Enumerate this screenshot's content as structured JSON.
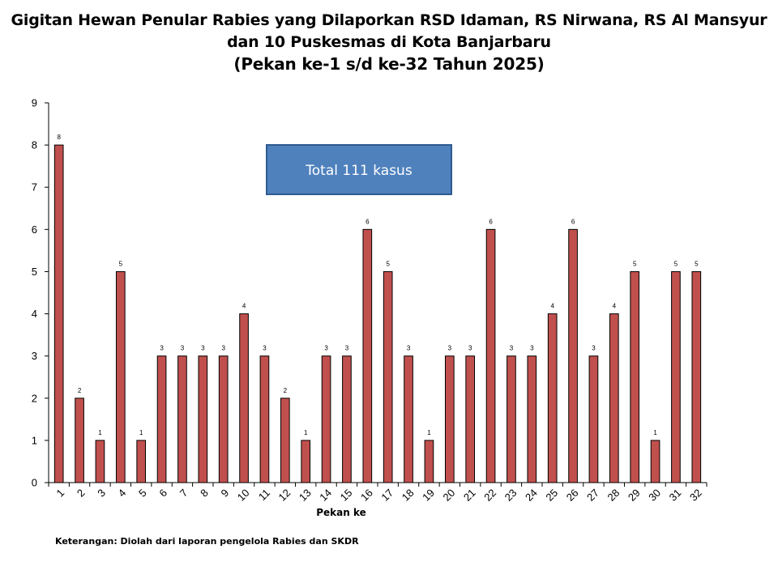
{
  "title_lines": [
    "Gigitan Hewan Penular Rabies yang Dilaporkan RSD Idaman, RS Nirwana, RS Al Mansyur",
    "dan 10 Puskesmas di Kota Banjarbaru",
    "(Pekan ke-1 s/d ke-32 Tahun 2025)"
  ],
  "total_box": {
    "label": "Total 111 kasus",
    "fill": "#4F81BD",
    "border": "#2E5B8F",
    "text_color": "#FFFFFF"
  },
  "footnote": "Keterangan: Diolah dari laporan pengelola Rabies dan SKDR",
  "colors": {
    "bar_fill": "#C0504D",
    "bar_stroke": "#000000",
    "axis": "#000000"
  },
  "chart_data": {
    "type": "bar",
    "title": "Gigitan Hewan Penular Rabies yang Dilaporkan RSD Idaman, RS Nirwana, RS Al Mansyur dan 10 Puskesmas di Kota Banjarbaru (Pekan ke-1 s/d ke-32 Tahun 2025)",
    "xlabel": "Pekan ke",
    "ylabel": "",
    "ylim": [
      0,
      9
    ],
    "yticks": [
      "0",
      "1",
      "2",
      "3",
      "4",
      "5",
      "6",
      "7",
      "8",
      "9"
    ],
    "categories": [
      "1",
      "2",
      "3",
      "4",
      "5",
      "6",
      "7",
      "8",
      "9",
      "10",
      "11",
      "12",
      "13",
      "14",
      "15",
      "16",
      "17",
      "18",
      "19",
      "20",
      "21",
      "22",
      "23",
      "24",
      "25",
      "26",
      "27",
      "28",
      "29",
      "30",
      "31",
      "32"
    ],
    "values": [
      8,
      2,
      1,
      5,
      1,
      3,
      3,
      3,
      3,
      4,
      3,
      2,
      1,
      3,
      3,
      6,
      5,
      3,
      1,
      3,
      3,
      6,
      3,
      3,
      4,
      6,
      3,
      4,
      5,
      1,
      5,
      5
    ],
    "data_labels": true,
    "grid": false,
    "legend": "none"
  }
}
